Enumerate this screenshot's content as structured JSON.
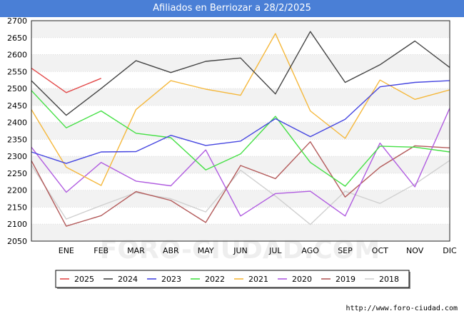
{
  "header": {
    "title": "Afiliados en Berriozar a 28/2/2025"
  },
  "footer": {
    "source": "http://www.foro-ciudad.com"
  },
  "watermark": "FORO-CIUDAD.COM",
  "chart_data": {
    "type": "line",
    "title": "Afiliados en Berriozar a 28/2/2025",
    "xlabel": "",
    "ylabel": "",
    "ylim": [
      2050,
      2700
    ],
    "yticks": [
      2050,
      2100,
      2150,
      2200,
      2250,
      2300,
      2350,
      2400,
      2450,
      2500,
      2550,
      2600,
      2650,
      2700
    ],
    "categories": [
      "",
      "ENE",
      "FEB",
      "MAR",
      "ABR",
      "MAY",
      "JUN",
      "JUL",
      "AGO",
      "SEP",
      "OCT",
      "NOV",
      "DIC"
    ],
    "grid": true,
    "legend_position": "bottom",
    "series": [
      {
        "name": "2025",
        "color": "#e34a4a",
        "values": [
          2560,
          2488,
          2530,
          null,
          null,
          null,
          null,
          null,
          null,
          null,
          null,
          null,
          null
        ]
      },
      {
        "name": "2024",
        "color": "#444444",
        "values": [
          2523,
          2421,
          2500,
          2582,
          2547,
          2580,
          2590,
          2484,
          2668,
          2518,
          2570,
          2640,
          2562
        ]
      },
      {
        "name": "2023",
        "color": "#4545e0",
        "values": [
          2313,
          2279,
          2313,
          2314,
          2362,
          2332,
          2345,
          2411,
          2358,
          2409,
          2505,
          2518,
          2523
        ]
      },
      {
        "name": "2022",
        "color": "#45e045",
        "values": [
          2494,
          2384,
          2434,
          2368,
          2355,
          2260,
          2307,
          2418,
          2282,
          2212,
          2330,
          2327,
          2313
        ]
      },
      {
        "name": "2021",
        "color": "#f5b83c",
        "values": [
          2438,
          2268,
          2214,
          2438,
          2523,
          2498,
          2480,
          2662,
          2434,
          2353,
          2525,
          2468,
          2496
        ]
      },
      {
        "name": "2020",
        "color": "#b05ce0",
        "values": [
          2327,
          2194,
          2282,
          2227,
          2213,
          2319,
          2124,
          2190,
          2197,
          2124,
          2339,
          2210,
          2442
        ]
      },
      {
        "name": "2019",
        "color": "#b35a5a",
        "values": [
          2287,
          2094,
          2125,
          2196,
          2170,
          2105,
          2273,
          2234,
          2343,
          2180,
          2268,
          2331,
          2325
        ]
      },
      {
        "name": "2018",
        "color": "#d0d0d0",
        "values": [
          2274,
          2115,
          2155,
          2193,
          2175,
          2136,
          2259,
          2183,
          2099,
          2197,
          2161,
          2218,
          2288
        ]
      }
    ]
  }
}
